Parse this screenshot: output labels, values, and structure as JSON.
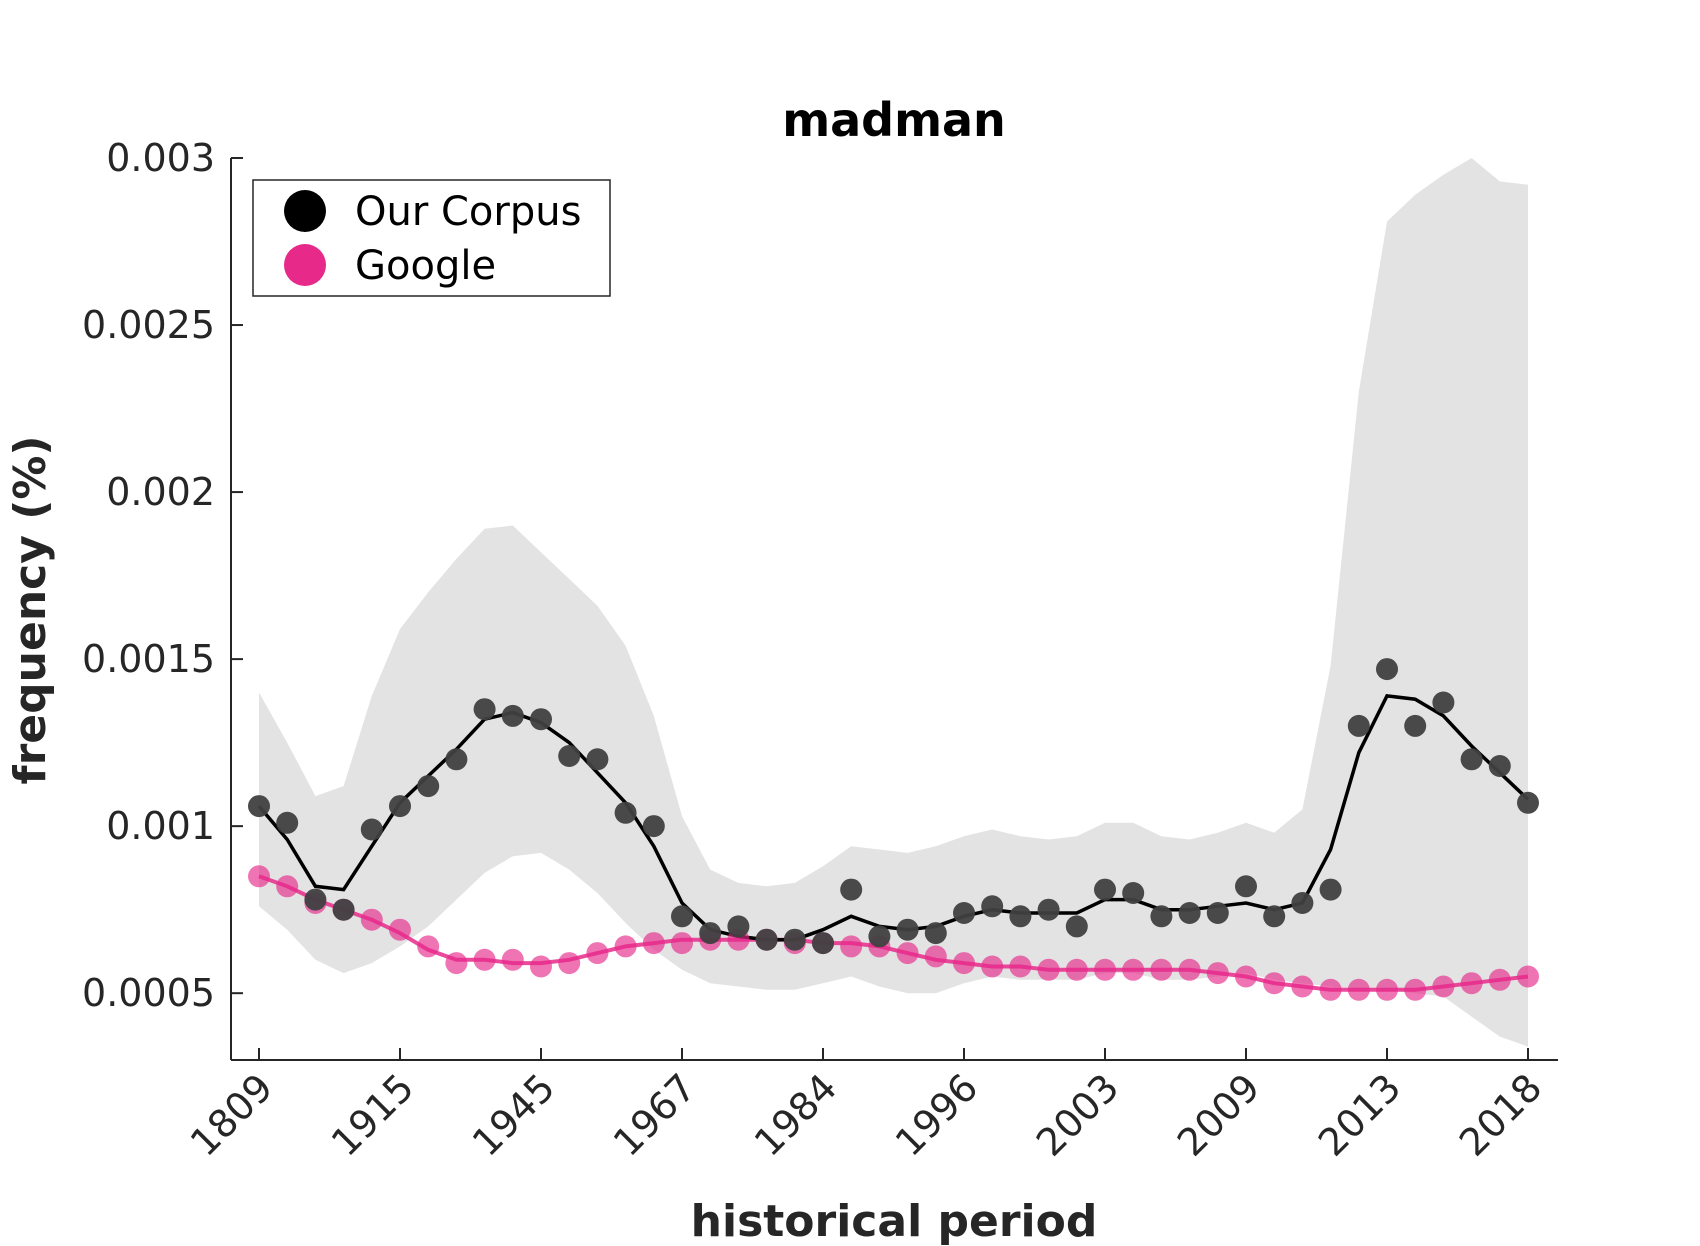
{
  "chart_data": {
    "type": "line",
    "title": "madman",
    "xlabel": "historical period",
    "ylabel": "frequency (%)",
    "ylim": [
      0.0003,
      0.003
    ],
    "y_ticks": [
      0.0005,
      0.001,
      0.0015,
      0.002,
      0.0025,
      0.003
    ],
    "y_tick_labels": [
      "0.0005",
      "0.001",
      "0.0015",
      "0.002",
      "0.0025",
      "0.003"
    ],
    "x_tick_labels": [
      "1809",
      "1915",
      "1945",
      "1967",
      "1984",
      "1996",
      "2003",
      "2009",
      "2013",
      "2018"
    ],
    "x_tick_every": 5,
    "grid": false,
    "legend_position": "top-left",
    "series": [
      {
        "name": "Our Corpus",
        "color": "#000000",
        "marker_color": "#404040",
        "points": [
          0.00106,
          0.00101,
          0.00078,
          0.00075,
          0.00099,
          0.00106,
          0.00112,
          0.0012,
          0.00135,
          0.00133,
          0.00132,
          0.00121,
          0.0012,
          0.00104,
          0.001,
          0.00073,
          0.00068,
          0.0007,
          0.00066,
          0.00066,
          0.00065,
          0.00081,
          0.00067,
          0.00069,
          0.00068,
          0.00074,
          0.00076,
          0.00073,
          0.00075,
          0.0007,
          0.00081,
          0.0008,
          0.00073,
          0.00074,
          0.00074,
          0.00082,
          0.00073,
          0.00077,
          0.00081,
          0.0013,
          0.00147,
          0.0013,
          0.00137,
          0.0012,
          0.00118,
          0.00107
        ],
        "smoothed": [
          0.00106,
          0.00096,
          0.00082,
          0.00081,
          0.00094,
          0.00107,
          0.00115,
          0.00123,
          0.00132,
          0.00134,
          0.00131,
          0.00125,
          0.00116,
          0.00107,
          0.00094,
          0.00077,
          0.00069,
          0.00067,
          0.00066,
          0.00066,
          0.00069,
          0.00073,
          0.0007,
          0.00069,
          0.0007,
          0.00073,
          0.00075,
          0.00074,
          0.00074,
          0.00074,
          0.00078,
          0.00078,
          0.00075,
          0.00075,
          0.00076,
          0.00077,
          0.00075,
          0.00077,
          0.00093,
          0.00122,
          0.00139,
          0.00138,
          0.00133,
          0.00124,
          0.00116,
          0.00108
        ],
        "band_upper": [
          0.0014,
          0.00125,
          0.00109,
          0.00112,
          0.00139,
          0.00159,
          0.0017,
          0.0018,
          0.00189,
          0.0019,
          0.00182,
          0.00174,
          0.00166,
          0.00154,
          0.00133,
          0.00103,
          0.00087,
          0.00083,
          0.00082,
          0.00083,
          0.00088,
          0.00094,
          0.00093,
          0.00092,
          0.00094,
          0.00097,
          0.00099,
          0.00097,
          0.00096,
          0.00097,
          0.00101,
          0.00101,
          0.00097,
          0.00096,
          0.00098,
          0.00101,
          0.00098,
          0.00105,
          0.00148,
          0.0023,
          0.00281,
          0.00289,
          0.00295,
          0.003,
          0.00293,
          0.00292
        ],
        "band_lower": [
          0.00076,
          0.00069,
          0.0006,
          0.00056,
          0.00059,
          0.00064,
          0.0007,
          0.00078,
          0.00086,
          0.00091,
          0.00092,
          0.00087,
          0.0008,
          0.00071,
          0.00063,
          0.00057,
          0.00053,
          0.00052,
          0.00051,
          0.00051,
          0.00053,
          0.00055,
          0.00052,
          0.0005,
          0.0005,
          0.00053,
          0.00055,
          0.00054,
          0.00054,
          0.00054,
          0.00056,
          0.00056,
          0.00054,
          0.00054,
          0.00055,
          0.00056,
          0.00054,
          0.00053,
          0.00052,
          0.00051,
          0.00051,
          0.0005,
          0.00049,
          0.00043,
          0.00037,
          0.00034
        ]
      },
      {
        "name": "Google",
        "color": "#e7298a",
        "points": [
          0.00085,
          0.00082,
          0.00077,
          0.00075,
          0.00072,
          0.00069,
          0.00064,
          0.00059,
          0.0006,
          0.0006,
          0.00058,
          0.00059,
          0.00062,
          0.00064,
          0.00065,
          0.00065,
          0.00066,
          0.00066,
          0.00066,
          0.00065,
          0.00065,
          0.00064,
          0.00064,
          0.00062,
          0.00061,
          0.00059,
          0.00058,
          0.00058,
          0.00057,
          0.00057,
          0.00057,
          0.00057,
          0.00057,
          0.00057,
          0.00056,
          0.00055,
          0.00053,
          0.00052,
          0.00051,
          0.00051,
          0.00051,
          0.00051,
          0.00052,
          0.00053,
          0.00054,
          0.00055
        ],
        "smoothed": [
          0.00085,
          0.00082,
          0.00078,
          0.00075,
          0.00072,
          0.00068,
          0.00063,
          0.0006,
          0.0006,
          0.00059,
          0.00059,
          0.0006,
          0.00062,
          0.00064,
          0.00065,
          0.00066,
          0.00066,
          0.00066,
          0.00066,
          0.00066,
          0.00065,
          0.00065,
          0.00064,
          0.00062,
          0.0006,
          0.00059,
          0.00058,
          0.00058,
          0.00057,
          0.00057,
          0.00057,
          0.00057,
          0.00057,
          0.00057,
          0.00056,
          0.00055,
          0.00053,
          0.00052,
          0.00051,
          0.00051,
          0.00051,
          0.00051,
          0.00052,
          0.00053,
          0.00054,
          0.00055
        ]
      }
    ]
  }
}
